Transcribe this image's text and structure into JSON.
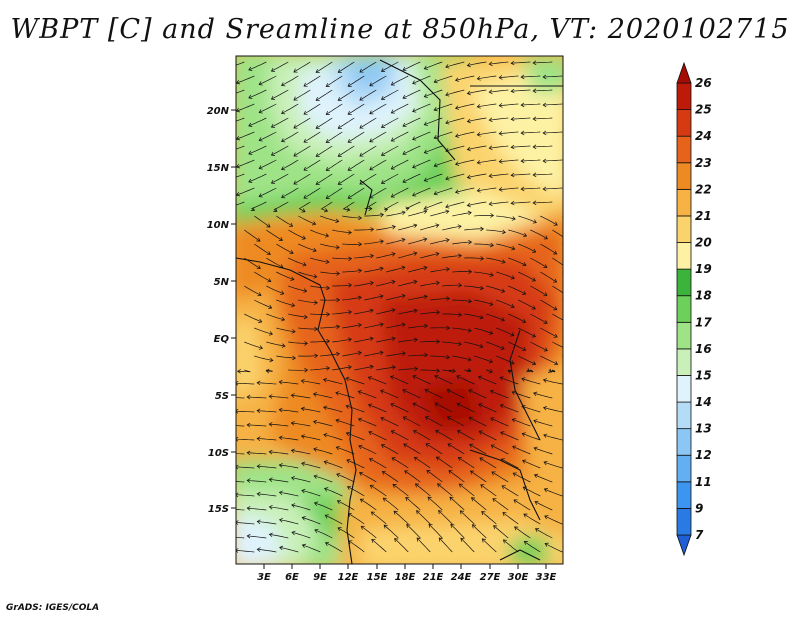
{
  "title": "WBPT [C] and Sreamline at 850hPa, VT: 2020102715",
  "credit": "GrADS: IGES/COLA",
  "map": {
    "lat_labels": [
      "20N",
      "15N",
      "10N",
      "5N",
      "EQ",
      "5S",
      "10S",
      "15S"
    ],
    "lon_labels": [
      "3E",
      "6E",
      "9E",
      "12E",
      "15E",
      "18E",
      "21E",
      "24E",
      "27E",
      "30E",
      "33E"
    ]
  },
  "colorbar": {
    "levels": [
      "7",
      "9",
      "11",
      "12",
      "13",
      "14",
      "15",
      "16",
      "17",
      "18",
      "19",
      "20",
      "21",
      "22",
      "23",
      "24",
      "25",
      "26"
    ],
    "colors": [
      "#1e5fd6",
      "#2a7ae4",
      "#3c95ee",
      "#63aff2",
      "#8cc6f4",
      "#b5dcf7",
      "#dff3fc",
      "#c9f0b8",
      "#9fe387",
      "#6dd05a",
      "#3cb43c",
      "#fdf2a4",
      "#fbd36d",
      "#f6b245",
      "#ee8a24",
      "#e6631b",
      "#d63a12",
      "#bd1a0a",
      "#a60c06"
    ]
  }
}
